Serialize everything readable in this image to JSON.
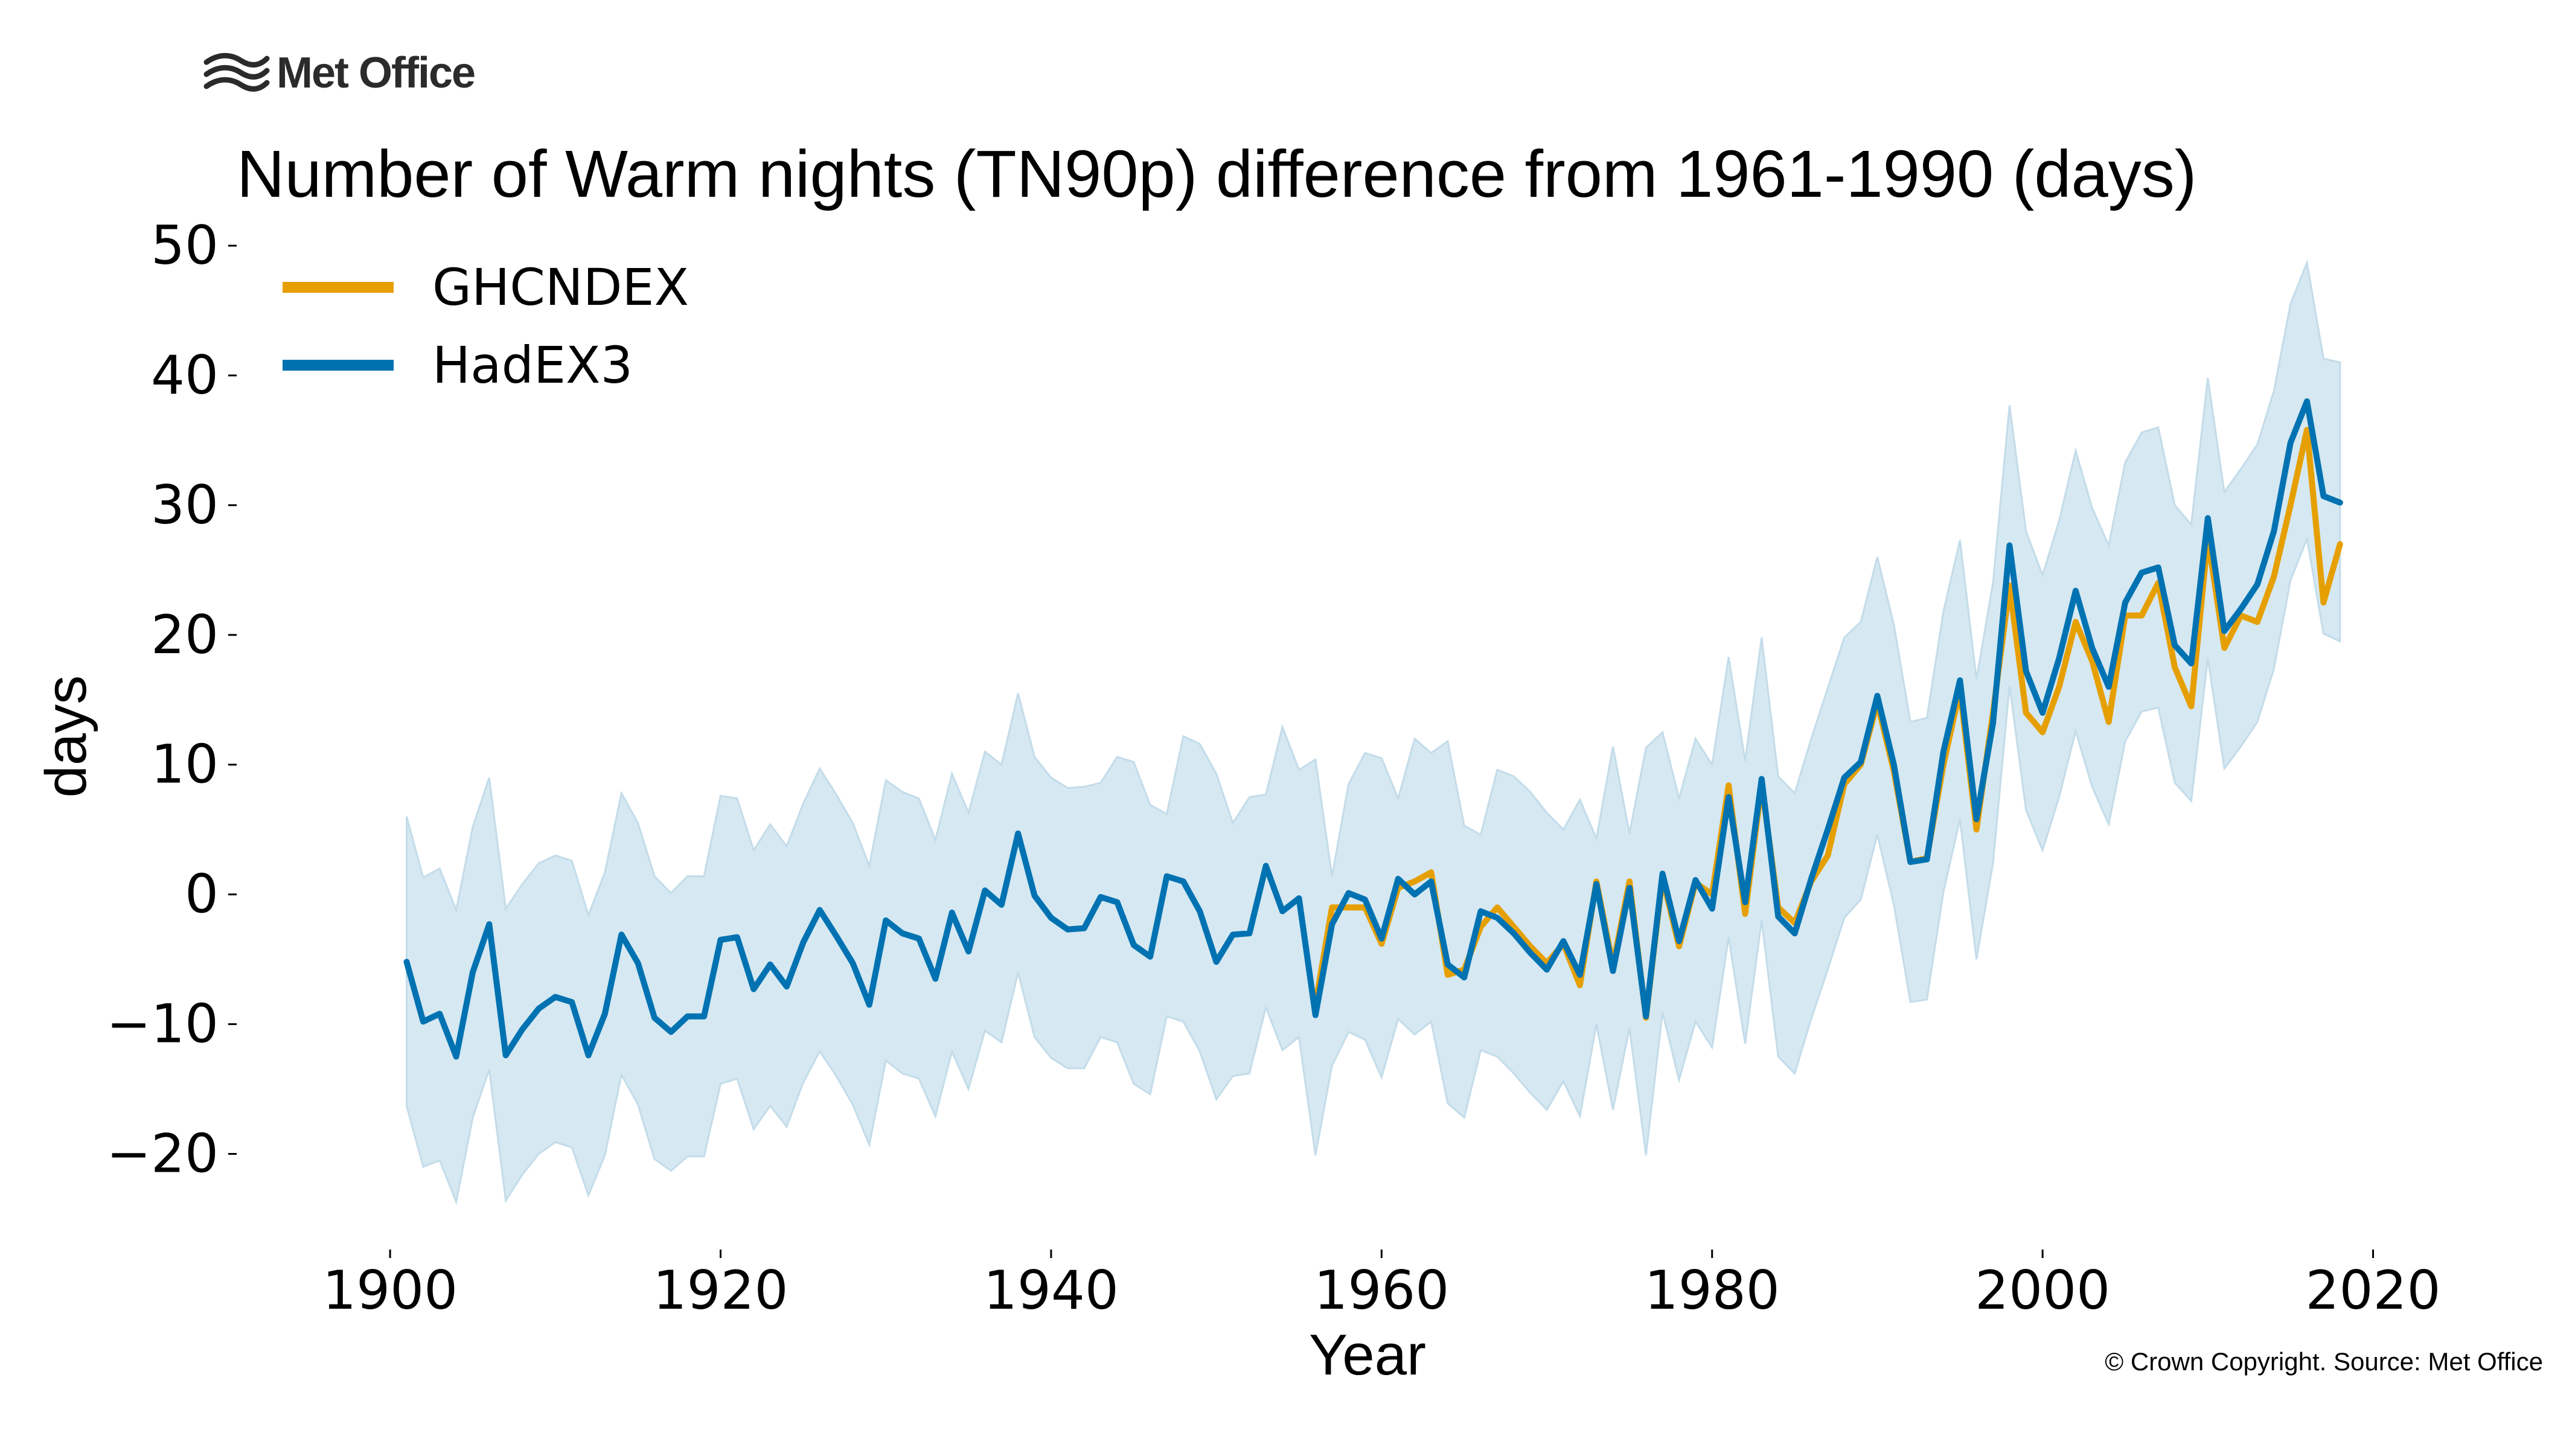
{
  "brand": {
    "name": "Met Office",
    "logo_icon": "met-office-waves-icon"
  },
  "copyright": "© Crown Copyright. Source: Met Office",
  "colors": {
    "ghcndex": "#E69F00",
    "hadex3": "#0072B2",
    "band": "#D6E8F1"
  },
  "chart_data": {
    "type": "line",
    "title": "Number of Warm nights (TN90p) difference from 1961-1990 (days)",
    "xlabel": "Year",
    "ylabel": "days",
    "xlim": [
      1897,
      2024
    ],
    "ylim": [
      -27,
      50
    ],
    "xticks": [
      1900,
      1920,
      1940,
      1960,
      1980,
      2000,
      2020
    ],
    "xtick_labels": [
      "1900",
      "1920",
      "1940",
      "1960",
      "1980",
      "2000",
      "2020"
    ],
    "yticks": [
      50,
      40,
      30,
      20,
      10,
      0,
      -10,
      -20
    ],
    "ytick_labels": [
      "50",
      "40",
      "30",
      "20",
      "10",
      "0",
      "−10",
      "−20"
    ],
    "grid": false,
    "legend_position": "top-left",
    "series": [
      {
        "name": "GHCNDEX",
        "x": [
          1956,
          1957,
          1958,
          1959,
          1960,
          1961,
          1962,
          1963,
          1964,
          1965,
          1966,
          1967,
          1968,
          1969,
          1970,
          1971,
          1972,
          1973,
          1974,
          1975,
          1976,
          1977,
          1978,
          1979,
          1980,
          1981,
          1982,
          1983,
          1984,
          1985,
          1986,
          1987,
          1988,
          1989,
          1990,
          1991,
          1992,
          1993,
          1994,
          1995,
          1996,
          1997,
          1998,
          1999,
          2000,
          2001,
          2002,
          2003,
          2004,
          2005,
          2006,
          2007,
          2008,
          2009,
          2010,
          2011,
          2012,
          2013,
          2014,
          2015,
          2016,
          2017,
          2018
        ],
        "values": [
          -8.5,
          -1.0,
          -1.0,
          -1.0,
          -3.8,
          0.5,
          1.0,
          1.7,
          -6.2,
          -5.8,
          -2.5,
          -1.0,
          -2.5,
          -4.0,
          -5.3,
          -3.8,
          -7.0,
          1.0,
          -5.5,
          1.0,
          -9.5,
          1.3,
          -4.0,
          0.9,
          0.0,
          8.4,
          -1.5,
          8.5,
          -1.0,
          -2.2,
          1.0,
          3.0,
          8.5,
          10.0,
          14.8,
          9.5,
          2.5,
          2.8,
          10.0,
          15.8,
          5.0,
          14.0,
          23.8,
          14.0,
          12.5,
          16.0,
          21.0,
          18.0,
          13.3,
          21.5,
          21.5,
          24.0,
          17.5,
          14.5,
          27.5,
          19.0,
          21.5,
          21.0,
          24.5,
          30.0,
          35.8,
          22.5,
          27.0
        ]
      },
      {
        "name": "HadEX3",
        "x": [
          1901,
          1902,
          1903,
          1904,
          1905,
          1906,
          1907,
          1908,
          1909,
          1910,
          1911,
          1912,
          1913,
          1914,
          1915,
          1916,
          1917,
          1918,
          1919,
          1920,
          1921,
          1922,
          1923,
          1924,
          1925,
          1926,
          1927,
          1928,
          1929,
          1930,
          1931,
          1932,
          1933,
          1934,
          1935,
          1936,
          1937,
          1938,
          1939,
          1940,
          1941,
          1942,
          1943,
          1944,
          1945,
          1946,
          1947,
          1948,
          1949,
          1950,
          1951,
          1952,
          1953,
          1954,
          1955,
          1956,
          1957,
          1958,
          1959,
          1960,
          1961,
          1962,
          1963,
          1964,
          1965,
          1966,
          1967,
          1968,
          1969,
          1970,
          1971,
          1972,
          1973,
          1974,
          1975,
          1976,
          1977,
          1978,
          1979,
          1980,
          1981,
          1982,
          1983,
          1984,
          1985,
          1986,
          1987,
          1988,
          1989,
          1990,
          1991,
          1992,
          1993,
          1994,
          1995,
          1996,
          1997,
          1998,
          1999,
          2000,
          2001,
          2002,
          2003,
          2004,
          2005,
          2006,
          2007,
          2008,
          2009,
          2010,
          2011,
          2012,
          2013,
          2014,
          2015,
          2016,
          2017,
          2018
        ],
        "values": [
          -5.2,
          -9.8,
          -9.2,
          -12.5,
          -6.0,
          -2.3,
          -12.4,
          -10.4,
          -8.8,
          -7.9,
          -8.3,
          -12.4,
          -9.2,
          -3.1,
          -5.3,
          -9.5,
          -10.6,
          -9.4,
          -9.4,
          -3.5,
          -3.3,
          -7.3,
          -5.4,
          -7.1,
          -3.7,
          -1.2,
          -3.2,
          -5.3,
          -8.5,
          -2.0,
          -3.0,
          -3.4,
          -6.5,
          -1.4,
          -4.4,
          0.3,
          -0.8,
          4.7,
          -0.1,
          -1.8,
          -2.7,
          -2.6,
          -0.2,
          -0.6,
          -3.9,
          -4.8,
          1.4,
          1.0,
          -1.3,
          -5.2,
          -3.1,
          -3.0,
          2.2,
          -1.3,
          -0.3,
          -9.3,
          -2.3,
          0.1,
          -0.4,
          -3.4,
          1.2,
          0.0,
          1.0,
          -5.4,
          -6.4,
          -1.3,
          -1.8,
          -3.0,
          -4.5,
          -5.8,
          -3.6,
          -6.2,
          0.8,
          -5.9,
          0.5,
          -9.4,
          1.6,
          -3.6,
          1.1,
          -1.1,
          7.5,
          -0.6,
          8.9,
          -1.7,
          -3.0,
          1.2,
          5.0,
          9.0,
          10.2,
          15.3,
          10.0,
          2.5,
          2.7,
          11.0,
          16.5,
          5.8,
          13.2,
          26.9,
          17.2,
          14.0,
          18.2,
          23.4,
          19.0,
          16.0,
          22.5,
          24.8,
          25.2,
          19.2,
          17.8,
          29.0,
          20.3,
          22.0,
          23.9,
          28.0,
          34.8,
          38.0,
          30.7,
          30.2
        ]
      },
      {
        "name": "HadEX3 range",
        "type": "band",
        "x": [
          1901,
          1902,
          1903,
          1904,
          1905,
          1906,
          1907,
          1908,
          1909,
          1910,
          1911,
          1912,
          1913,
          1914,
          1915,
          1916,
          1917,
          1918,
          1919,
          1920,
          1921,
          1922,
          1923,
          1924,
          1925,
          1926,
          1927,
          1928,
          1929,
          1930,
          1931,
          1932,
          1933,
          1934,
          1935,
          1936,
          1937,
          1938,
          1939,
          1940,
          1941,
          1942,
          1943,
          1944,
          1945,
          1946,
          1947,
          1948,
          1949,
          1950,
          1951,
          1952,
          1953,
          1954,
          1955,
          1956,
          1957,
          1958,
          1959,
          1960,
          1961,
          1962,
          1963,
          1964,
          1965,
          1966,
          1967,
          1968,
          1969,
          1970,
          1971,
          1972,
          1973,
          1974,
          1975,
          1976,
          1977,
          1978,
          1979,
          1980,
          1981,
          1982,
          1983,
          1984,
          1985,
          1986,
          1987,
          1988,
          1989,
          1990,
          1991,
          1992,
          1993,
          1994,
          1995,
          1996,
          1997,
          1998,
          1999,
          2000,
          2001,
          2002,
          2003,
          2004,
          2005,
          2006,
          2007,
          2008,
          2009,
          2010,
          2011,
          2012,
          2013,
          2014,
          2015,
          2016,
          2017,
          2018
        ],
        "lower": [
          -16.3,
          -21.0,
          -20.5,
          -23.7,
          -17.2,
          -13.5,
          -23.6,
          -21.6,
          -20.0,
          -19.1,
          -19.5,
          -23.2,
          -20.1,
          -13.9,
          -16.2,
          -20.4,
          -21.3,
          -20.2,
          -20.2,
          -14.6,
          -14.2,
          -18.1,
          -16.3,
          -17.9,
          -14.5,
          -12.1,
          -14.0,
          -16.2,
          -19.3,
          -12.8,
          -13.8,
          -14.2,
          -17.1,
          -12.1,
          -15.0,
          -10.5,
          -11.4,
          -6.0,
          -11.0,
          -12.6,
          -13.4,
          -13.4,
          -11.0,
          -11.4,
          -14.6,
          -15.4,
          -9.4,
          -9.8,
          -12.1,
          -15.8,
          -14.0,
          -13.8,
          -8.7,
          -12.0,
          -11.0,
          -20.1,
          -13.2,
          -10.6,
          -11.2,
          -14.1,
          -9.6,
          -10.8,
          -9.8,
          -16.1,
          -17.2,
          -12.0,
          -12.5,
          -13.8,
          -15.3,
          -16.6,
          -14.4,
          -17.1,
          -10.0,
          -16.6,
          -10.3,
          -20.1,
          -9.1,
          -14.3,
          -9.8,
          -11.8,
          -3.3,
          -11.5,
          -2.0,
          -12.5,
          -13.8,
          -9.6,
          -5.8,
          -1.8,
          -0.4,
          4.6,
          -0.8,
          -8.3,
          -8.1,
          0.2,
          5.8,
          -5.0,
          2.4,
          16.1,
          6.5,
          3.4,
          7.5,
          12.6,
          8.3,
          5.4,
          11.8,
          14.1,
          14.4,
          8.6,
          7.2,
          18.2,
          9.7,
          11.4,
          13.3,
          17.4,
          24.2,
          27.4,
          20.1,
          19.5
        ],
        "upper": [
          6.0,
          1.3,
          2.0,
          -1.2,
          5.2,
          9.0,
          -1.1,
          0.8,
          2.4,
          3.0,
          2.6,
          -1.6,
          1.7,
          7.8,
          5.5,
          1.4,
          0.1,
          1.4,
          1.4,
          7.6,
          7.4,
          3.4,
          5.4,
          3.7,
          7.0,
          9.7,
          7.7,
          5.5,
          2.2,
          8.8,
          7.9,
          7.4,
          4.2,
          9.3,
          6.3,
          11.0,
          10.0,
          15.5,
          10.6,
          9.0,
          8.2,
          8.3,
          8.6,
          10.6,
          10.2,
          6.9,
          6.2,
          12.2,
          11.6,
          9.3,
          5.5,
          7.5,
          7.7,
          12.9,
          9.6,
          10.4,
          1.4,
          8.5,
          10.9,
          10.5,
          7.4,
          12.0,
          10.9,
          11.8,
          5.3,
          4.6,
          9.6,
          9.1,
          7.9,
          6.3,
          5.0,
          7.3,
          4.3,
          11.4,
          4.7,
          11.3,
          12.5,
          7.4,
          12.0,
          10.0,
          18.3,
          10.3,
          19.8,
          9.1,
          7.8,
          12.0,
          15.9,
          19.8,
          21.0,
          26.0,
          20.8,
          13.3,
          13.6,
          21.8,
          27.3,
          16.6,
          24.0,
          37.7,
          28.0,
          24.6,
          28.8,
          34.2,
          29.8,
          26.9,
          33.3,
          35.6,
          36.0,
          30.0,
          28.5,
          39.8,
          31.0,
          32.8,
          34.7,
          38.8,
          45.5,
          48.7,
          41.3,
          41.0
        ]
      }
    ]
  }
}
